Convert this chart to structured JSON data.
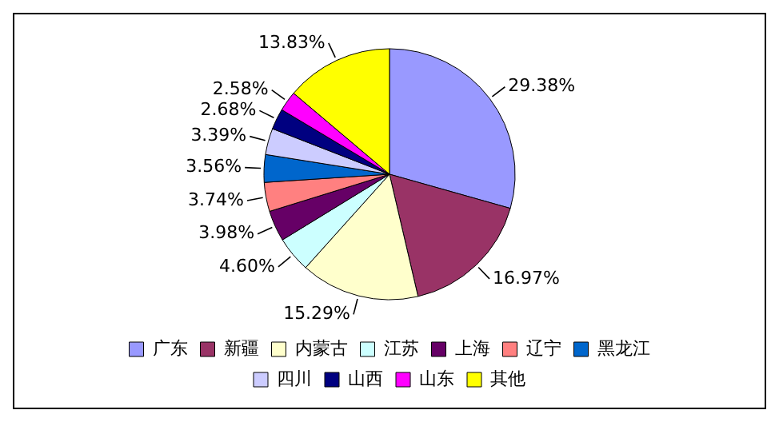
{
  "chart_data": {
    "type": "pie",
    "categories": [
      "广东",
      "新疆",
      "内蒙古",
      "江苏",
      "上海",
      "辽宁",
      "黑龙江",
      "四川",
      "山西",
      "山东",
      "其他"
    ],
    "values": [
      29.38,
      16.97,
      15.29,
      4.6,
      3.98,
      3.74,
      3.56,
      3.39,
      2.68,
      2.58,
      13.83
    ],
    "value_labels": [
      "29.38%",
      "16.97%",
      "15.29%",
      "4.60%",
      "3.98%",
      "3.74%",
      "3.56%",
      "3.39%",
      "2.68%",
      "2.58%",
      "13.83%"
    ],
    "colors": [
      "#9999ff",
      "#993366",
      "#ffffcc",
      "#ccffff",
      "#660066",
      "#ff8080",
      "#0066cc",
      "#ccccff",
      "#000080",
      "#ff00ff",
      "#ffff00"
    ],
    "legend": "bottom"
  }
}
